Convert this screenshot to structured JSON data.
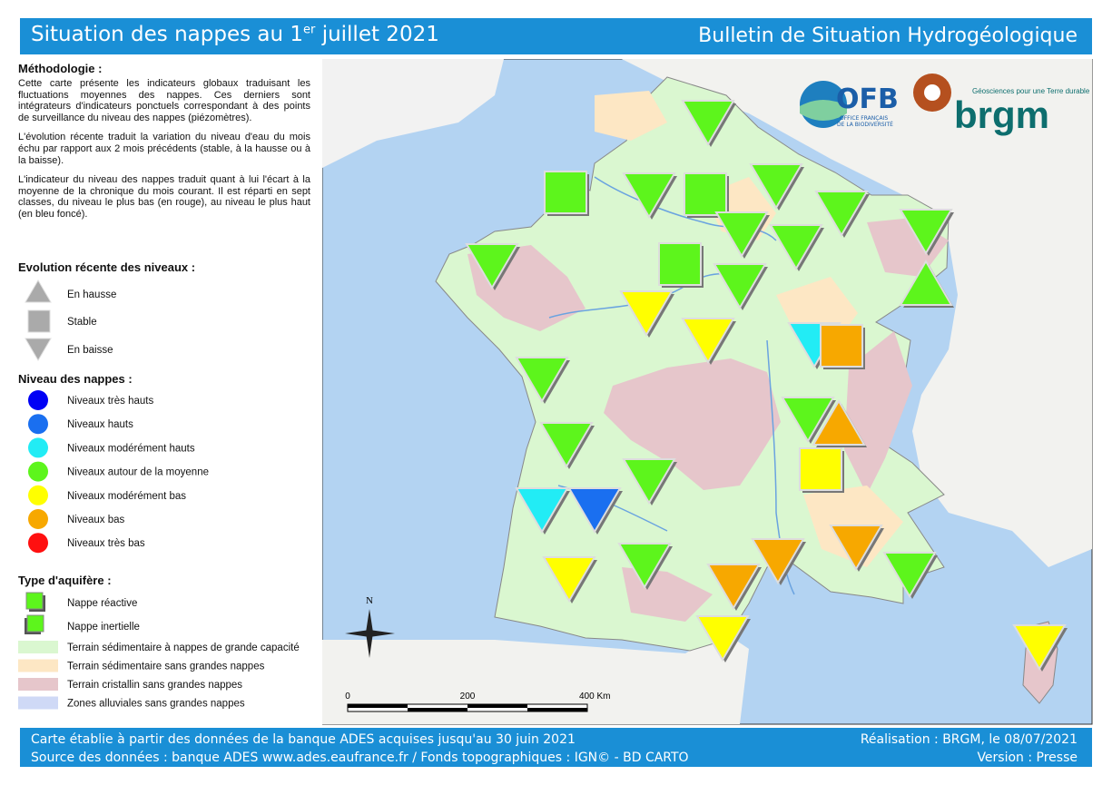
{
  "header": {
    "title_main": "Situation des nappes au 1",
    "title_sup": "er",
    "title_end": "juillet 2021",
    "subtitle": "Bulletin de Situation Hydrogéologique"
  },
  "methodology": {
    "title": "Méthodologie :",
    "paragraphs": [
      "Cette carte présente les indicateurs globaux traduisant les fluctuations moyennes des nappes. Ces derniers sont intégrateurs d'indicateurs ponctuels correspondant à des points de surveillance du niveau des nappes (piézomètres).",
      "L'évolution récente traduit la variation du niveau d'eau du mois échu par rapport aux 2 mois précédents (stable, à la hausse ou à la baisse).",
      "L'indicateur du niveau des nappes traduit quant à lui l'écart à la moyenne de la chronique du mois courant. Il est réparti en sept classes, du niveau le plus bas (en rouge), au niveau le plus haut (en bleu foncé)."
    ]
  },
  "legend": {
    "evolution": {
      "title": "Evolution récente des niveaux :",
      "items": [
        "En hausse",
        "Stable",
        "En baisse"
      ]
    },
    "levels": {
      "title": "Niveau des nappes :",
      "items": [
        {
          "label": "Niveaux très hauts",
          "color": "#0000f5"
        },
        {
          "label": "Niveaux hauts",
          "color": "#1a6ff0"
        },
        {
          "label": "Niveaux modérément hauts",
          "color": "#22ecf5"
        },
        {
          "label": "Niveaux autour de la moyenne",
          "color": "#5df51c"
        },
        {
          "label": "Niveaux modérément bas",
          "color": "#ffff00"
        },
        {
          "label": "Niveaux bas",
          "color": "#f7a800"
        },
        {
          "label": "Niveaux très bas",
          "color": "#ff1010"
        }
      ]
    },
    "aquifer": {
      "title": "Type d'aquifère :",
      "items": [
        "Nappe réactive",
        "Nappe inertielle"
      ]
    },
    "terrain": {
      "items": [
        {
          "label": "Terrain sédimentaire à nappes de grande capacité",
          "color": "#daf7d0"
        },
        {
          "label": "Terrain sédimentaire sans grandes nappes",
          "color": "#fde7c4"
        },
        {
          "label": "Terrain cristallin sans grandes nappes",
          "color": "#e6c6cb"
        },
        {
          "label": "Zones alluviales sans grandes nappes",
          "color": "#cfd9f6"
        }
      ]
    }
  },
  "logos": {
    "ofb": "OFB",
    "ofb_sub1": "OFFICE FRANÇAIS",
    "ofb_sub2": "DE LA BIODIVERSITÉ",
    "brgm_tag": "Géosciences pour une Terre durable",
    "brgm": "brgm"
  },
  "scale": {
    "labels": [
      "0",
      "200",
      "400 Km"
    ]
  },
  "compass": "N",
  "footer": {
    "left": [
      "Carte établie à partir des données de la banque ADES acquises jusqu'au 30 juin 2021",
      "Source des données : banque ADES www.ades.eaufrance.fr / Fonds topographiques : IGN© - BD CARTO"
    ],
    "right": [
      "Réalisation : BRGM, le 08/07/2021",
      "Version : Presse"
    ]
  }
}
